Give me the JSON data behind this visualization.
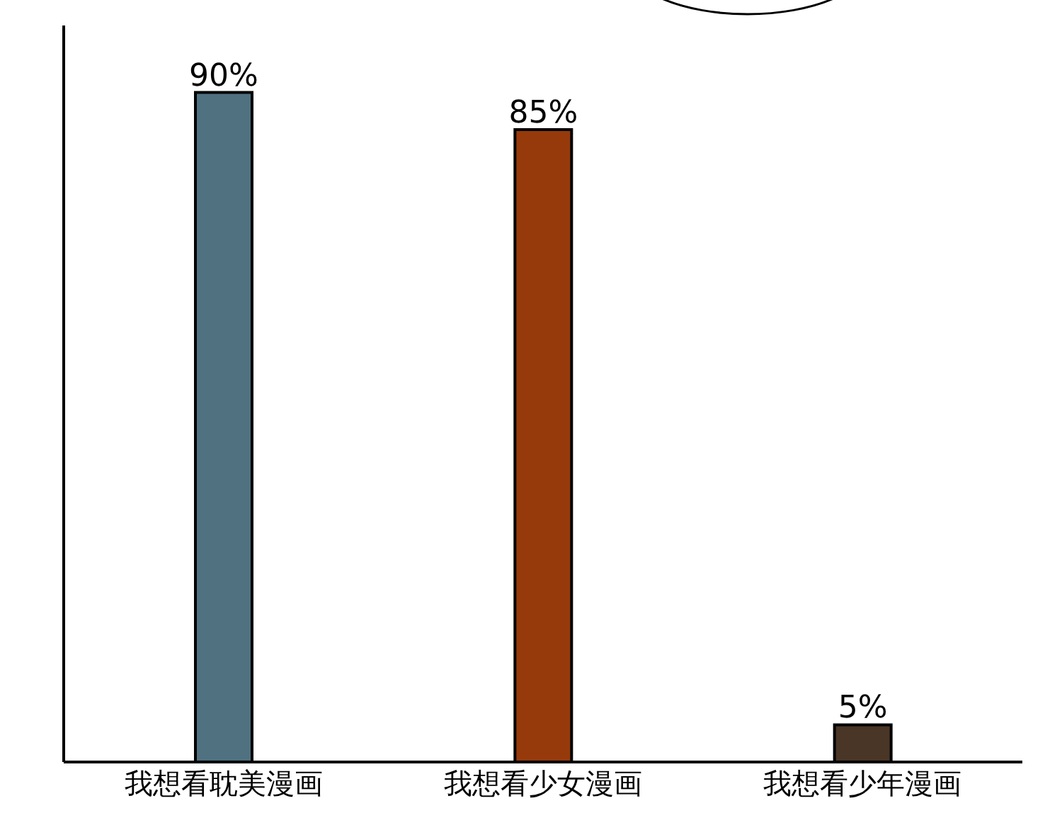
{
  "chart_data": {
    "type": "bar",
    "categories": [
      "我想看耽美漫画",
      "我想看少女漫画",
      "我想看少年漫画"
    ],
    "values": [
      90,
      85,
      5
    ],
    "colors": [
      "#4f7180",
      "#963a0b",
      "#4a3626"
    ],
    "value_labels": [
      "90%",
      "85%",
      "5%"
    ]
  }
}
